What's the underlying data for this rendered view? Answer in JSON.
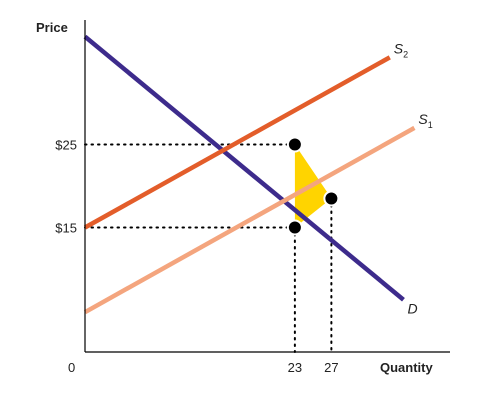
{
  "chart_data": {
    "type": "line",
    "xlabel": "Quantity",
    "ylabel": "Price",
    "origin_label": "0",
    "xlim": [
      0,
      40
    ],
    "ylim": [
      0,
      40
    ],
    "x_ticks": [
      {
        "value": 23,
        "label": "23"
      },
      {
        "value": 27,
        "label": "27"
      }
    ],
    "y_ticks": [
      {
        "value": 25,
        "label": "$25"
      },
      {
        "value": 15,
        "label": "$15"
      }
    ],
    "series": [
      {
        "name": "D",
        "label_main": "D",
        "label_sub": "",
        "color": "#3d2b8c",
        "x": [
          0,
          34.9
        ],
        "y": [
          38,
          6.3
        ]
      },
      {
        "name": "S2",
        "label_main": "S",
        "label_sub": "2",
        "color": "#e35d2a",
        "x": [
          0,
          33.4
        ],
        "y": [
          15,
          35.5
        ]
      },
      {
        "name": "S1",
        "label_main": "S",
        "label_sub": "1",
        "color": "#f4a57e",
        "x": [
          0,
          36.1
        ],
        "y": [
          4.8,
          27
        ]
      }
    ],
    "points": [
      {
        "x": 23,
        "y": 25
      },
      {
        "x": 23,
        "y": 15
      },
      {
        "x": 27,
        "y": 18.5
      }
    ],
    "shaded_region": {
      "color": "#ffd400",
      "points": [
        [
          23,
          25
        ],
        [
          23,
          15
        ],
        [
          27,
          18.5
        ]
      ]
    },
    "guides": [
      {
        "from": [
          0,
          25
        ],
        "to": [
          23,
          25
        ]
      },
      {
        "from": [
          0,
          15
        ],
        "to": [
          23,
          15
        ]
      },
      {
        "from": [
          23,
          15
        ],
        "to": [
          23,
          0
        ]
      },
      {
        "from": [
          27,
          18.5
        ],
        "to": [
          27,
          0
        ]
      }
    ]
  }
}
